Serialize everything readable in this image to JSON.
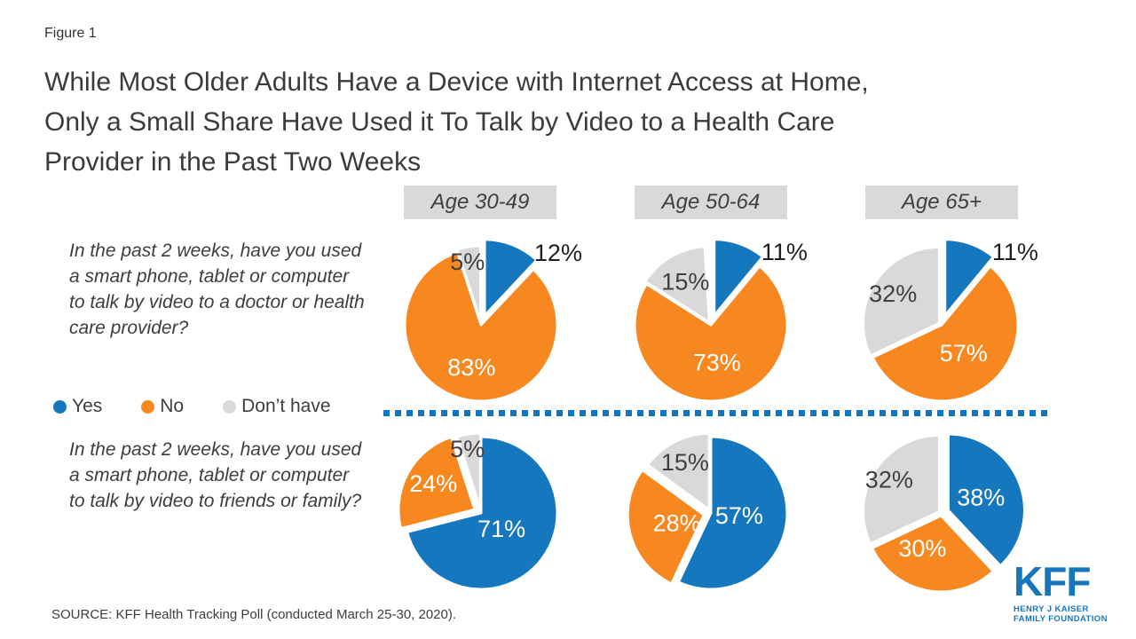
{
  "slide": {
    "figure_label": "Figure 1",
    "title_lines": [
      "While Most Older Adults Have a Device with Internet Access at Home,",
      "Only a Small Share Have Used it To Talk by Video to a Health Care",
      "Provider in the Past Two Weeks"
    ],
    "source": "SOURCE: KFF Health Tracking Poll (conducted March 25-30, 2020).",
    "logo": {
      "name": "KFF",
      "sub1": "HENRY J KAISER",
      "sub2": "FAMILY FOUNDATION"
    }
  },
  "questions": {
    "doctor": "In the past 2 weeks, have you used a smart phone, tablet or computer to talk by video to a doctor or health care provider?",
    "friends": "In the past 2 weeks, have you used a smart phone, tablet or computer to talk by video to friends or family?"
  },
  "legend": {
    "items": [
      {
        "label": "Yes",
        "key": "yes"
      },
      {
        "label": "No",
        "key": "no"
      },
      {
        "label": "Don’t have",
        "key": "dont_have"
      }
    ]
  },
  "age_groups": [
    "Age 30-49",
    "Age 50-64",
    "Age 65+"
  ],
  "colors": {
    "yes": "#1577BE",
    "no": "#F6881F",
    "dont_have": "#D9D9D9",
    "divider": "#1375BD",
    "header_bg": "#D9D9D9",
    "label_dark": "#404040",
    "label_black": "#1F1F1F",
    "label_white": "#FFFFFF",
    "logo_blue": "#1576BE"
  },
  "chart_data": [
    {
      "type": "pie",
      "question": "doctor",
      "age_group": "Age 30-49",
      "slices": [
        {
          "name": "Yes",
          "key": "yes",
          "value": 12,
          "label": "12%",
          "placement": "outside",
          "explode": 11
        },
        {
          "name": "No",
          "key": "no",
          "value": 83,
          "label": "83%",
          "placement": "inside",
          "label_r": 0.57
        },
        {
          "name": "Don't have",
          "key": "dont_have",
          "value": 5,
          "label": "5%",
          "placement": "inside",
          "label_r": 0.8,
          "explode": 3,
          "label_dx": -4
        }
      ]
    },
    {
      "type": "pie",
      "question": "doctor",
      "age_group": "Age 50-64",
      "slices": [
        {
          "name": "Yes",
          "key": "yes",
          "value": 11,
          "label": "11%",
          "placement": "outside",
          "explode": 11
        },
        {
          "name": "No",
          "key": "no",
          "value": 73,
          "label": "73%",
          "placement": "inside",
          "label_r": 0.5
        },
        {
          "name": "Don't have",
          "key": "dont_have",
          "value": 15,
          "label": "15%",
          "placement": "inside",
          "label_r": 0.62,
          "explode": 3
        }
      ]
    },
    {
      "type": "pie",
      "question": "doctor",
      "age_group": "Age 65+",
      "slices": [
        {
          "name": "Yes",
          "key": "yes",
          "value": 11,
          "label": "11%",
          "placement": "outside",
          "explode": 11
        },
        {
          "name": "No",
          "key": "no",
          "value": 57,
          "label": "57%",
          "placement": "inside",
          "label_r": 0.47
        },
        {
          "name": "Don't have",
          "key": "dont_have",
          "value": 32,
          "label": "32%",
          "placement": "inside",
          "label_r": 0.72,
          "explode": 3
        }
      ]
    },
    {
      "type": "pie",
      "question": "friends",
      "age_group": "Age 30-49",
      "slices": [
        {
          "name": "Yes",
          "key": "yes",
          "value": 71,
          "label": "71%",
          "placement": "inside",
          "label_r": 0.34
        },
        {
          "name": "No",
          "key": "no",
          "value": 24,
          "label": "24%",
          "placement": "inside",
          "label_r": 0.7,
          "explode": 8,
          "label_dx": 6
        },
        {
          "name": "Don't have",
          "key": "dont_have",
          "value": 5,
          "label": "5%",
          "placement": "inside",
          "label_r": 0.8,
          "explode": 4,
          "label_dx": -4
        }
      ]
    },
    {
      "type": "pie",
      "question": "friends",
      "age_group": "Age 50-64",
      "slices": [
        {
          "name": "Yes",
          "key": "yes",
          "value": 57,
          "label": "57%",
          "placement": "inside",
          "label_r": 0.38,
          "label_dy": -4
        },
        {
          "name": "No",
          "key": "no",
          "value": 28,
          "label": "28%",
          "placement": "inside",
          "label_r": 0.44,
          "explode": 8,
          "label_dx": 6
        },
        {
          "name": "Don't have",
          "key": "dont_have",
          "value": 15,
          "label": "15%",
          "placement": "inside",
          "label_r": 0.7,
          "explode": 4
        }
      ]
    },
    {
      "type": "pie",
      "question": "friends",
      "age_group": "Age 65+",
      "slices": [
        {
          "name": "Yes",
          "key": "yes",
          "value": 38,
          "label": "38%",
          "placement": "inside",
          "label_r": 0.46,
          "explode": 8
        },
        {
          "name": "No",
          "key": "no",
          "value": 30,
          "label": "30%",
          "placement": "inside",
          "label_r": 0.44,
          "explode": 3,
          "label_dx": -14
        },
        {
          "name": "Don't have",
          "key": "dont_have",
          "value": 32,
          "label": "32%",
          "placement": "inside",
          "label_r": 0.78,
          "explode": 3
        }
      ]
    }
  ]
}
